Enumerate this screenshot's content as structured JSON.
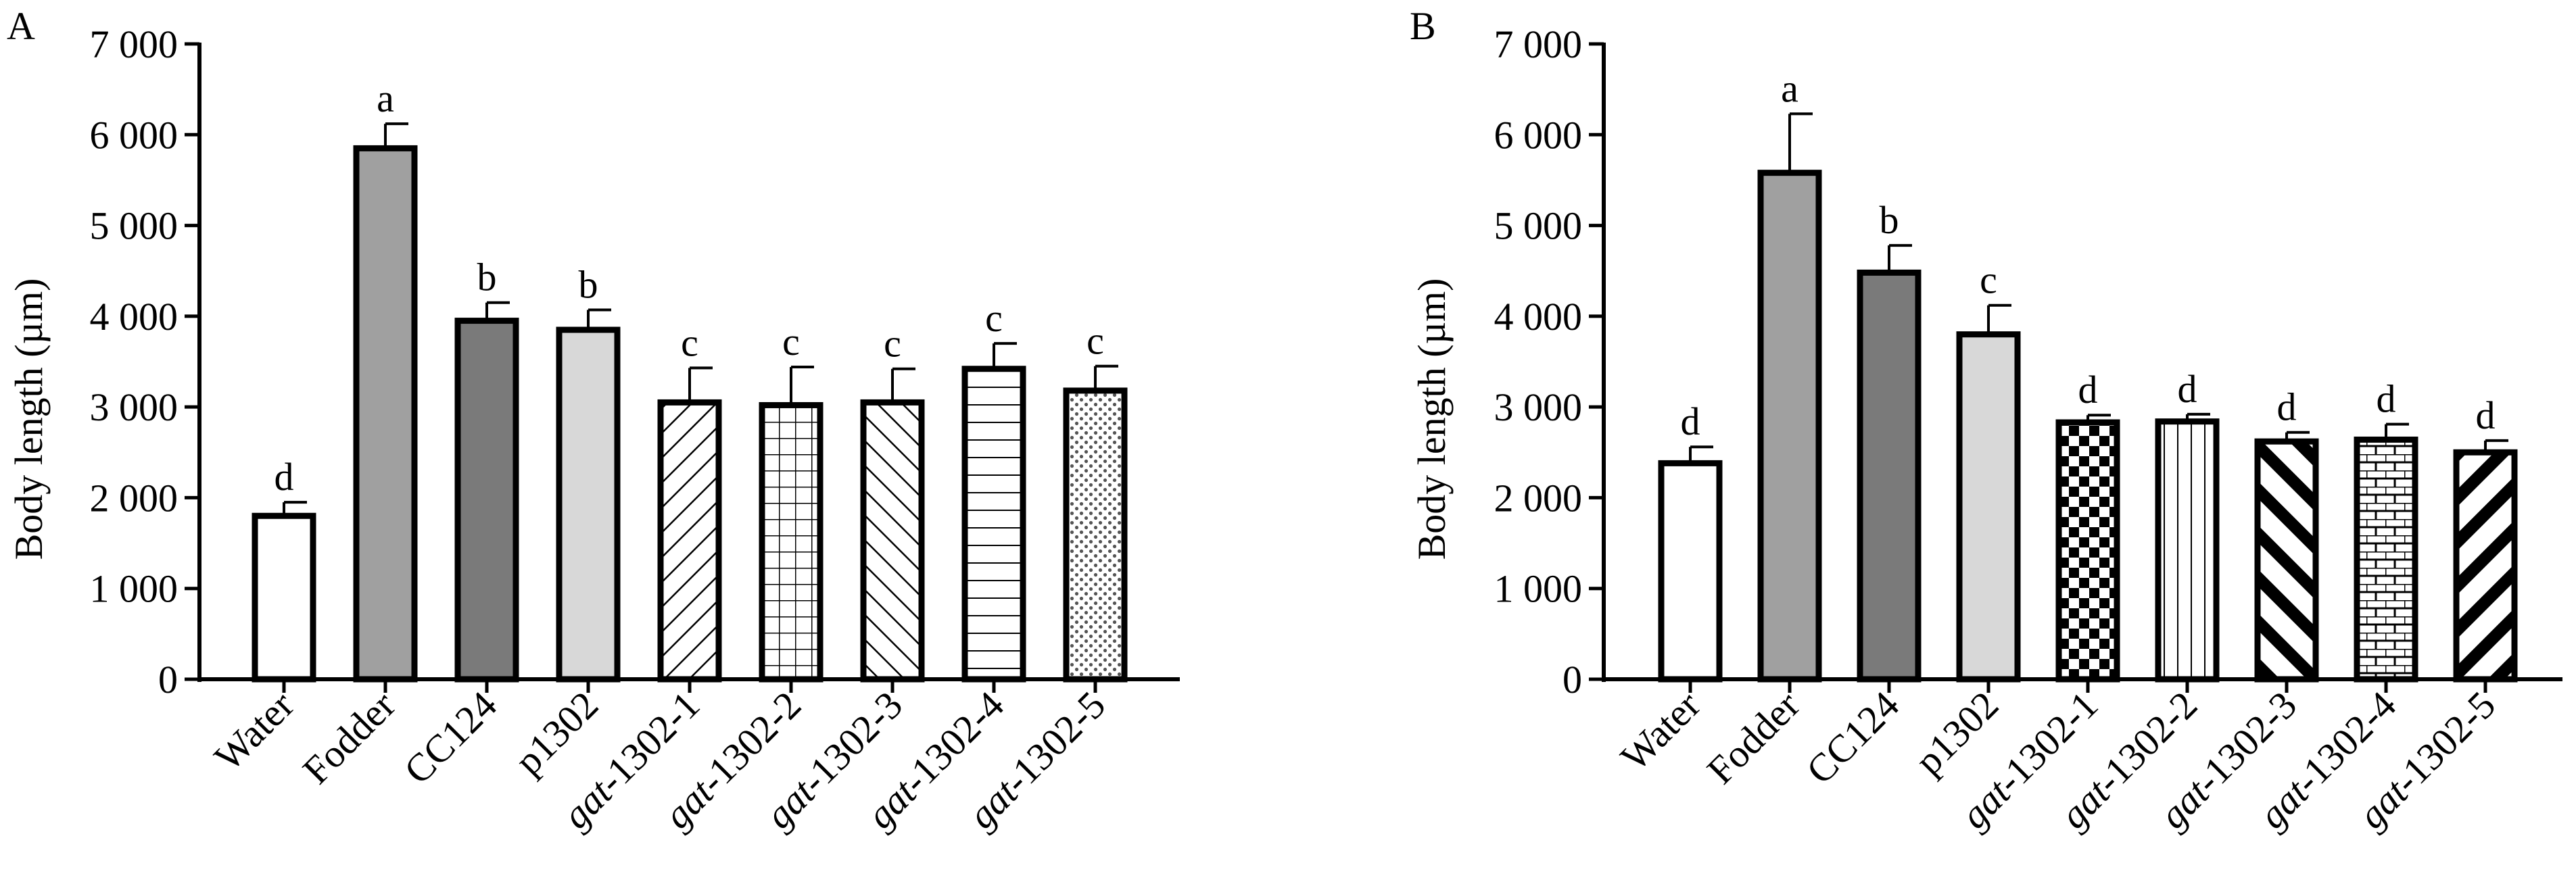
{
  "panels": [
    {
      "label": "A",
      "ylabel": "Body length (µm)",
      "yticks": [
        "0",
        "1 000",
        "2 000",
        "3 000",
        "4 000",
        "5 000",
        "6 000",
        "7 000"
      ]
    },
    {
      "label": "B",
      "ylabel": "Body length (µm)",
      "yticks": [
        "0",
        "1 000",
        "2 000",
        "3 000",
        "4 000",
        "5 000",
        "6 000",
        "7 000"
      ]
    }
  ],
  "chart_data": [
    {
      "type": "bar",
      "panel": "A",
      "title": "",
      "xlabel": "",
      "ylabel": "Body length (µm)",
      "ylim": [
        0,
        7000
      ],
      "yticks": [
        0,
        1000,
        2000,
        3000,
        4000,
        5000,
        6000,
        7000
      ],
      "grid": false,
      "categories": [
        {
          "prefix": "",
          "suffix": "Water"
        },
        {
          "prefix": "",
          "suffix": "Fodder"
        },
        {
          "prefix": "",
          "suffix": "CC124"
        },
        {
          "prefix": "",
          "suffix": "p1302"
        },
        {
          "prefix": "gat",
          "suffix": "-1302-1"
        },
        {
          "prefix": "gat",
          "suffix": "-1302-2"
        },
        {
          "prefix": "gat",
          "suffix": "-1302-3"
        },
        {
          "prefix": "gat",
          "suffix": "-1302-4"
        },
        {
          "prefix": "gat",
          "suffix": "-1302-5"
        }
      ],
      "values": [
        1800,
        5850,
        3950,
        3850,
        3050,
        3020,
        3050,
        3420,
        3180
      ],
      "error": [
        150,
        270,
        200,
        220,
        380,
        420,
        370,
        280,
        270
      ],
      "significance": [
        "d",
        "a",
        "b",
        "b",
        "c",
        "c",
        "c",
        "c",
        "c"
      ],
      "fills": [
        "white",
        "#a0a0a0",
        "#7a7a7a",
        "#d8d8d8",
        "diag-fwd-thin",
        "grid",
        "diag-back-thin",
        "horizontal",
        "dots"
      ]
    },
    {
      "type": "bar",
      "panel": "B",
      "title": "",
      "xlabel": "",
      "ylabel": "Body length (µm)",
      "ylim": [
        0,
        7000
      ],
      "yticks": [
        0,
        1000,
        2000,
        3000,
        4000,
        5000,
        6000,
        7000
      ],
      "grid": false,
      "categories": [
        {
          "prefix": "",
          "suffix": "Water"
        },
        {
          "prefix": "",
          "suffix": "Fodder"
        },
        {
          "prefix": "",
          "suffix": "CC124"
        },
        {
          "prefix": "",
          "suffix": "p1302"
        },
        {
          "prefix": "gat",
          "suffix": "-1302-1"
        },
        {
          "prefix": "gat",
          "suffix": "-1302-2"
        },
        {
          "prefix": "gat",
          "suffix": "-1302-3"
        },
        {
          "prefix": "gat",
          "suffix": "-1302-4"
        },
        {
          "prefix": "gat",
          "suffix": "-1302-5"
        }
      ],
      "values": [
        2380,
        5580,
        4480,
        3800,
        2830,
        2840,
        2620,
        2640,
        2500
      ],
      "error": [
        180,
        650,
        300,
        320,
        80,
        80,
        100,
        170,
        130
      ],
      "significance": [
        "d",
        "a",
        "b",
        "c",
        "d",
        "d",
        "d",
        "d",
        "d"
      ],
      "fills": [
        "white",
        "#a0a0a0",
        "#7a7a7a",
        "#d8d8d8",
        "checker",
        "vertical",
        "diag-back-thick",
        "brick",
        "diag-fwd-thick"
      ]
    }
  ]
}
